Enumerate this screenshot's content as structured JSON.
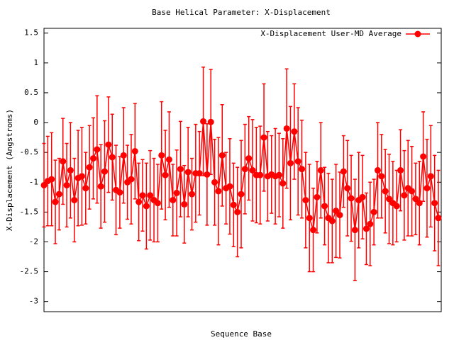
{
  "chart_data": {
    "type": "errorbar-line",
    "title": "Base  Helical Parameter: X-Displacement",
    "x_label": "Sequence Base",
    "y_label": "X-Displacement (Angstroms)",
    "categories": [
      null,
      null,
      null,
      null,
      null,
      null,
      null,
      null,
      null,
      null,
      null,
      null,
      null,
      null,
      null,
      null,
      null,
      null,
      null,
      null,
      null,
      null,
      null,
      null,
      null,
      null,
      null,
      null,
      null,
      null,
      null,
      null,
      null,
      null,
      null,
      null,
      null,
      null,
      null,
      null,
      null,
      null,
      null,
      null,
      null,
      null,
      null,
      null,
      null,
      null,
      null,
      null,
      null,
      null,
      null,
      null,
      null,
      null,
      null,
      null,
      null,
      null,
      null,
      null,
      null,
      null,
      null,
      null,
      null,
      null,
      null,
      null,
      null,
      null,
      null,
      null,
      null,
      null,
      null,
      null,
      null,
      null,
      null,
      null,
      null,
      null,
      null,
      null,
      null,
      null,
      null,
      null,
      null,
      null,
      null,
      null,
      null,
      null,
      null,
      null,
      null,
      null,
      null,
      null,
      null
    ],
    "series": [
      {
        "name": "X-Displacement User-MD Average",
        "color": "#ff0000",
        "values": [
          -1.05,
          -0.98,
          -0.95,
          -1.33,
          -1.2,
          -0.65,
          -1.05,
          -0.8,
          -1.3,
          -0.93,
          -0.9,
          -1.1,
          -0.75,
          -0.6,
          -0.45,
          -1.07,
          -0.82,
          -0.37,
          -0.58,
          -1.13,
          -1.17,
          -0.55,
          -1.0,
          -0.95,
          -0.48,
          -1.33,
          -1.22,
          -1.4,
          -1.22,
          -1.3,
          -1.35,
          -0.55,
          -0.88,
          -0.62,
          -1.3,
          -1.18,
          -0.78,
          -1.37,
          -0.83,
          -1.2,
          -0.85,
          -0.85,
          0.02,
          -0.87,
          0.01,
          -1.0,
          -1.15,
          -0.55,
          -1.1,
          -1.07,
          -1.38,
          -1.5,
          -1.2,
          -0.78,
          -0.6,
          -0.8,
          -0.88,
          -0.88,
          -0.25,
          -0.9,
          -0.87,
          -0.9,
          -0.88,
          -1.02,
          -0.1,
          -0.68,
          -0.15,
          -0.65,
          -0.78,
          -1.3,
          -1.6,
          -1.8,
          -1.25,
          -0.8,
          -1.4,
          -1.6,
          -1.65,
          -1.48,
          -1.55,
          -0.82,
          -1.1,
          -1.27,
          -1.8,
          -1.3,
          -1.25,
          -1.78,
          -1.7,
          -1.5,
          -0.8,
          -0.9,
          -1.15,
          -1.28,
          -1.35,
          -1.4,
          -0.8,
          -1.22,
          -1.1,
          -1.15,
          -1.28,
          -1.35,
          -0.57,
          -1.1,
          -0.9,
          -1.35,
          -1.6
        ],
        "errors": [
          0.7,
          0.75,
          0.78,
          0.7,
          0.6,
          0.72,
          0.7,
          0.8,
          0.7,
          0.8,
          0.82,
          0.6,
          0.7,
          0.68,
          0.9,
          0.7,
          0.85,
          0.8,
          0.72,
          0.75,
          0.6,
          0.8,
          0.62,
          0.75,
          0.8,
          0.65,
          0.6,
          0.72,
          0.75,
          0.7,
          0.65,
          0.9,
          0.75,
          0.8,
          0.6,
          0.72,
          0.8,
          0.65,
          0.75,
          0.6,
          0.82,
          0.7,
          0.91,
          0.85,
          0.88,
          0.72,
          0.9,
          0.85,
          0.6,
          0.8,
          0.7,
          0.75,
          0.9,
          0.75,
          0.7,
          0.85,
          0.8,
          0.82,
          0.9,
          0.75,
          0.65,
          0.8,
          0.7,
          0.75,
          1.0,
          0.95,
          0.8,
          0.9,
          0.82,
          0.8,
          0.9,
          0.7,
          0.6,
          0.8,
          0.65,
          0.75,
          0.7,
          0.78,
          0.72,
          0.6,
          0.8,
          0.72,
          0.85,
          0.8,
          0.7,
          0.6,
          0.7,
          0.55,
          0.8,
          0.7,
          0.7,
          0.75,
          0.7,
          0.6,
          0.68,
          0.75,
          0.8,
          0.75,
          0.6,
          0.7,
          0.75,
          0.82,
          0.85,
          0.8,
          0.8
        ]
      }
    ],
    "ylim": [
      -3.17,
      1.58
    ],
    "yticks": [
      -3,
      -2.5,
      -2,
      -1.5,
      -1,
      -0.5,
      0,
      0.5,
      1,
      1.5
    ],
    "legend": "top-right"
  }
}
